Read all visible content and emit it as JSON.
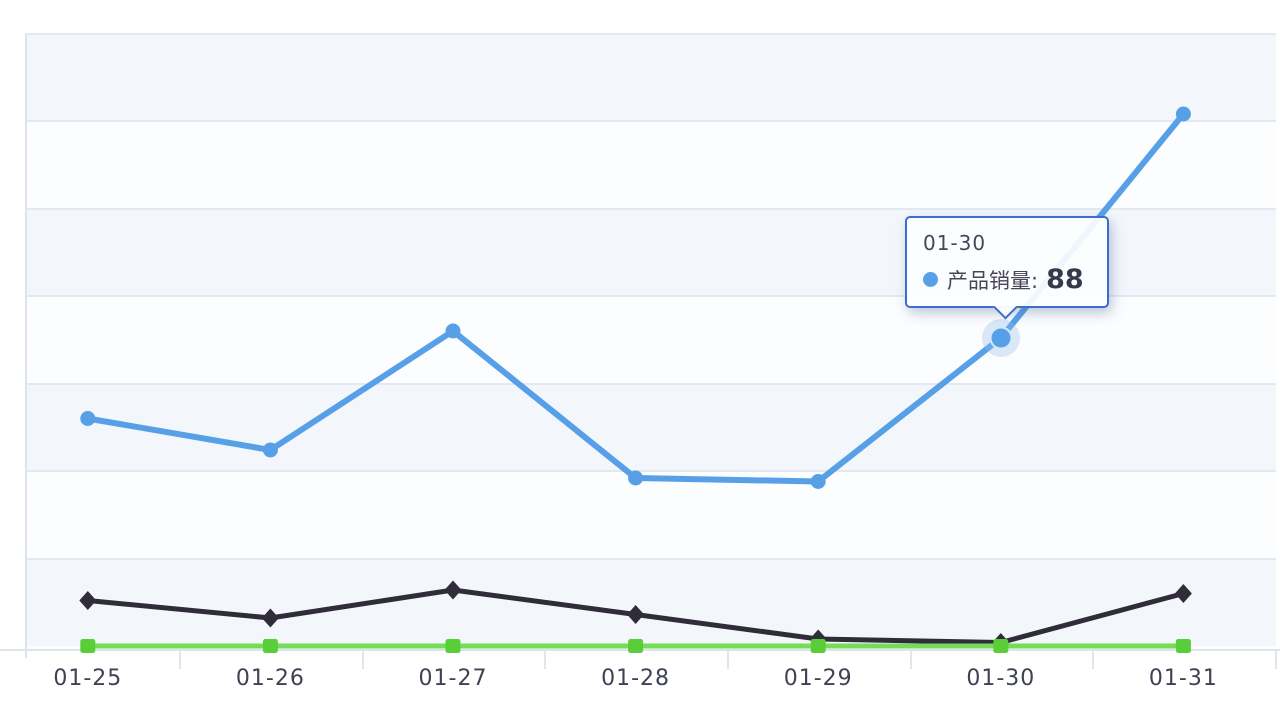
{
  "tooltip": {
    "title": "01-30",
    "series_label": "产品销量:",
    "value": "88",
    "marker_color": "#57a0e8",
    "border_color": "#3e6cc8"
  },
  "chart_data": {
    "type": "line",
    "title": "",
    "xlabel": "",
    "ylabel": "",
    "categories": [
      "01-25",
      "01-26",
      "01-27",
      "01-28",
      "01-29",
      "01-30",
      "01-31"
    ],
    "series": [
      {
        "id": "product-sales",
        "name": "产品销量",
        "marker": "circle",
        "color": "#57a0e8",
        "line_width": 6,
        "values": [
          65,
          56,
          90,
          48,
          47,
          88,
          152
        ]
      },
      {
        "id": "series-black",
        "name": "",
        "marker": "diamond",
        "color": "#302c3a",
        "line_width": 5,
        "values": [
          13,
          8,
          16,
          9,
          2,
          1,
          15
        ]
      },
      {
        "id": "series-green",
        "name": "",
        "marker": "square",
        "color": "#74dc55",
        "marker_color": "#59ce38",
        "line_width": 5,
        "values": [
          0,
          0,
          0,
          0,
          0,
          0,
          0
        ]
      }
    ],
    "highlight": {
      "category": "01-30",
      "series": "产品销量",
      "value": 88
    },
    "ylim": [
      0,
      175
    ],
    "grid_step": 25,
    "grid": true,
    "legend_position": "none",
    "colors": {
      "gridline": "#e2e9f1",
      "axis": "#dce3ec",
      "band_dark": "#f3f7fb",
      "band_light": "#fbfdfe",
      "x_label": "#3f4254"
    }
  }
}
